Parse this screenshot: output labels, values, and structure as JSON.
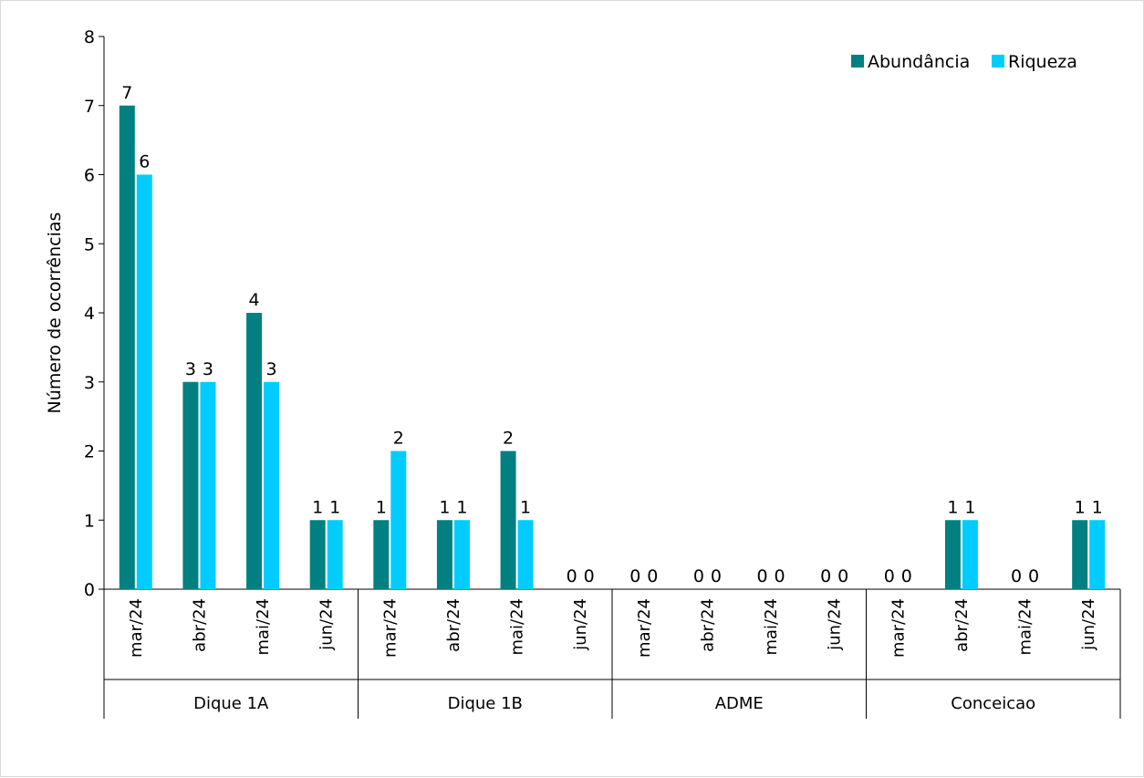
{
  "chart_data": {
    "type": "bar",
    "ylabel": "Número de ocorrências",
    "ylim": [
      0,
      8
    ],
    "yticks": [
      0,
      1,
      2,
      3,
      4,
      5,
      6,
      7,
      8
    ],
    "grid": false,
    "legend": "top-right",
    "groups": [
      "Dique 1A",
      "Dique 1B",
      "ADME",
      "Conceicao"
    ],
    "months": [
      "mar/24",
      "abr/24",
      "mai/24",
      "jun/24"
    ],
    "categories": [
      "mar/24",
      "abr/24",
      "mai/24",
      "jun/24",
      "mar/24",
      "abr/24",
      "mai/24",
      "jun/24",
      "mar/24",
      "abr/24",
      "mai/24",
      "jun/24",
      "mar/24",
      "abr/24",
      "mai/24",
      "jun/24"
    ],
    "series": [
      {
        "name": "Abundância",
        "color": "#008080",
        "values": [
          7,
          3,
          4,
          1,
          1,
          1,
          2,
          0,
          0,
          0,
          0,
          0,
          0,
          1,
          0,
          1
        ]
      },
      {
        "name": "Riqueza",
        "color": "#00CCFF",
        "values": [
          6,
          3,
          3,
          1,
          2,
          1,
          1,
          0,
          0,
          0,
          0,
          0,
          0,
          1,
          0,
          1
        ]
      }
    ]
  }
}
